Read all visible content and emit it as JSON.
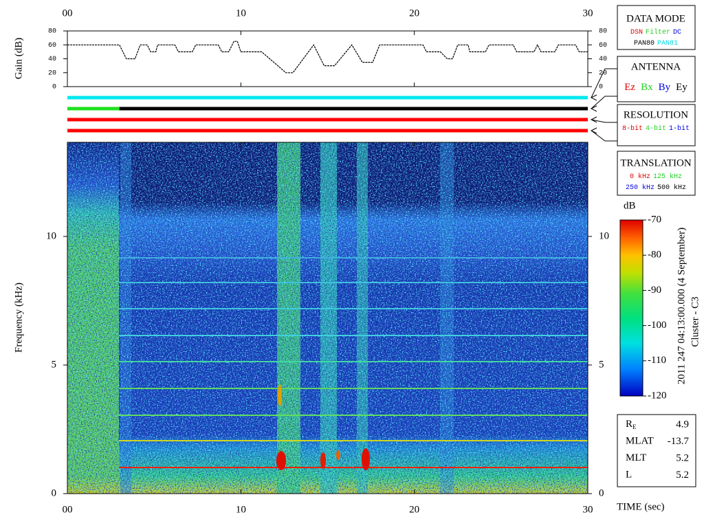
{
  "chart_data": [
    {
      "type": "line",
      "ylabel": "Gain (dB)",
      "x": [
        0,
        3.0,
        3.4,
        3.9,
        4.2,
        4.6,
        4.8,
        5.1,
        5.2,
        6.2,
        6.4,
        7.2,
        7.4,
        8.7,
        8.9,
        9.3,
        9.6,
        9.8,
        10.0,
        11.2,
        12.6,
        13.0,
        14.2,
        14.8,
        15.4,
        16.4,
        17.0,
        17.6,
        18.0,
        20.5,
        20.7,
        21.5,
        21.9,
        22.2,
        22.5,
        23.1,
        23.2,
        24.1,
        24.3,
        25.7,
        25.9,
        26.9,
        27.1,
        27.3,
        28.1,
        28.3,
        29.3,
        29.5,
        30
      ],
      "series": [
        {
          "color": "#000000",
          "values": [
            60,
            60,
            40,
            40,
            60,
            60,
            50,
            50,
            60,
            60,
            50,
            50,
            60,
            60,
            50,
            50,
            65,
            65,
            50,
            50,
            20,
            20,
            60,
            30,
            30,
            60,
            35,
            35,
            60,
            60,
            50,
            50,
            40,
            40,
            60,
            60,
            50,
            50,
            60,
            60,
            50,
            50,
            60,
            50,
            50,
            60,
            60,
            50,
            50
          ]
        }
      ],
      "xlim": [
        0,
        30
      ],
      "xticks": [
        {
          "value": 0,
          "label": "00"
        },
        10,
        20,
        30
      ],
      "ylim": [
        0,
        80
      ],
      "yticks": [
        0,
        20,
        40,
        60,
        80
      ]
    },
    {
      "type": "spectrogram",
      "xlabel": "TIME (sec)",
      "ylabel": "Frequency (kHz)",
      "xlim": [
        0,
        30
      ],
      "xticks": [
        {
          "value": 0,
          "label": "00"
        },
        10,
        20,
        30
      ],
      "ylim": [
        0,
        13.66
      ],
      "yticks": [
        0,
        5,
        10
      ],
      "colorbar": {
        "label": "dB",
        "lim": [
          -120,
          -70
        ],
        "ticks": [
          -120,
          -110,
          -100,
          -90,
          -80,
          -70
        ]
      }
    }
  ],
  "status_bars": [
    {
      "segments": [
        {
          "from": 0,
          "to": 30,
          "color": "#00e8f0"
        }
      ]
    },
    {
      "segments": [
        {
          "from": 0,
          "to": 3,
          "color": "#20e020"
        },
        {
          "from": 3,
          "to": 30,
          "color": "#000000"
        }
      ]
    },
    {
      "segments": [
        {
          "from": 0,
          "to": 30,
          "color": "#ff0000"
        }
      ]
    },
    {
      "segments": [
        {
          "from": 0,
          "to": 30,
          "color": "#ff0000"
        }
      ]
    }
  ],
  "legend_boxes": [
    {
      "title": "DATA MODE",
      "rows": [
        [
          {
            "text": "DSN",
            "color": "#e00000"
          },
          {
            "text": "Filter",
            "color": "#20d020"
          },
          {
            "text": "DC",
            "color": "#0000e0"
          }
        ],
        [
          {
            "text": "PAN80",
            "color": "#000000"
          },
          {
            "text": "PAN81",
            "color": "#00d8e8"
          }
        ]
      ]
    },
    {
      "title": "ANTENNA",
      "rows": [
        [
          {
            "text": "Ez",
            "color": "#e00000"
          },
          {
            "text": "Bx",
            "color": "#20d020"
          },
          {
            "text": "By",
            "color": "#0000e0"
          },
          {
            "text": "Ey",
            "color": "#000000"
          }
        ]
      ]
    },
    {
      "title": "RESOLUTION",
      "rows": [
        [
          {
            "text": "8-bit",
            "color": "#e00000"
          },
          {
            "text": "4-bit",
            "color": "#20d020"
          },
          {
            "text": "1-bit",
            "color": "#0000e0"
          }
        ]
      ]
    },
    {
      "title": "TRANSLATION",
      "rows": [
        [
          {
            "text": "0 kHz",
            "color": "#e00000"
          },
          {
            "text": "125 kHz",
            "color": "#20d020"
          }
        ],
        [
          {
            "text": "250 kHz",
            "color": "#0000e0"
          },
          {
            "text": "500 kHz",
            "color": "#000000"
          }
        ]
      ]
    }
  ],
  "side_title": "2011 247 04:13:00.000 (4 September)",
  "spacecraft": "Cluster - C3",
  "info": [
    {
      "label": "R",
      "sub": "E",
      "value": "4.9"
    },
    {
      "label": "MLAT",
      "value": "-13.7"
    },
    {
      "label": "MLT",
      "value": "5.2"
    },
    {
      "label": "L",
      "value": "5.2"
    }
  ]
}
